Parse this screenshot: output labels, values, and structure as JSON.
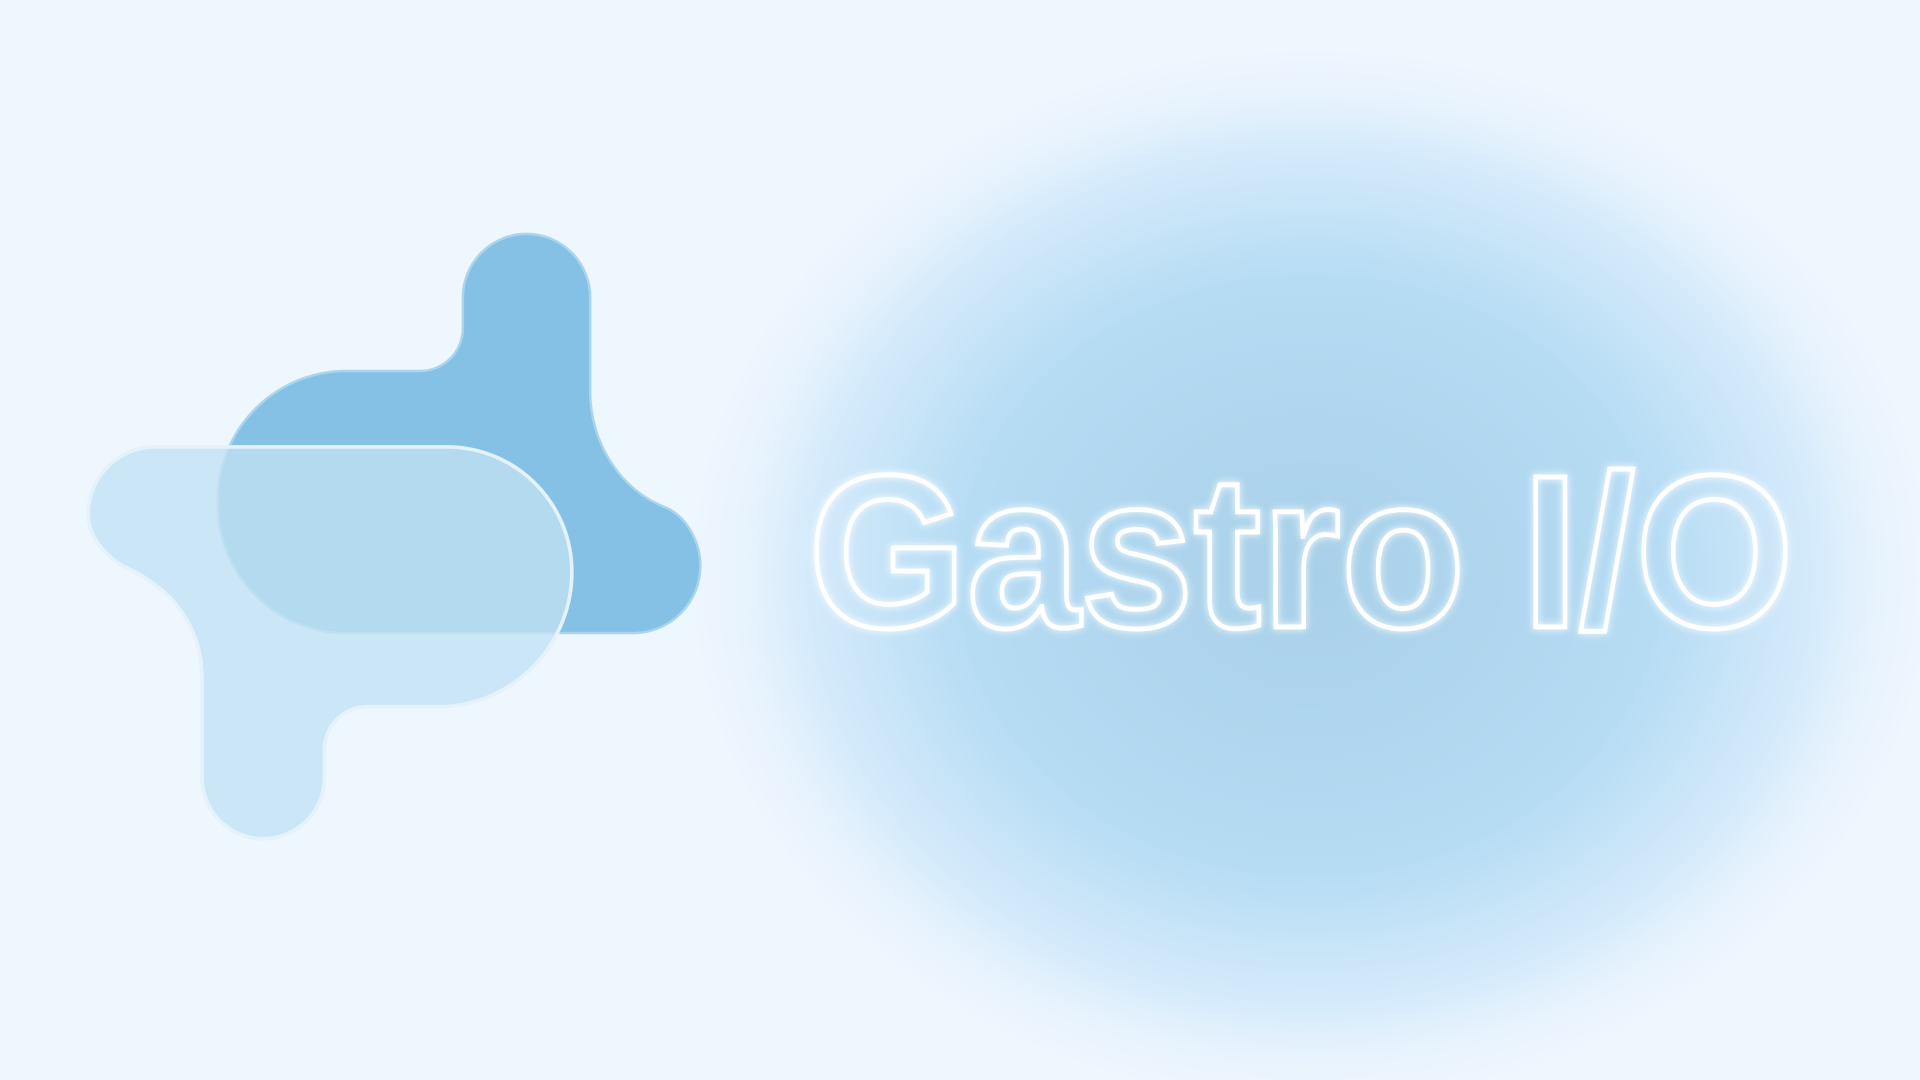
{
  "logo": {
    "wordmark": "Gastro I/O"
  }
}
